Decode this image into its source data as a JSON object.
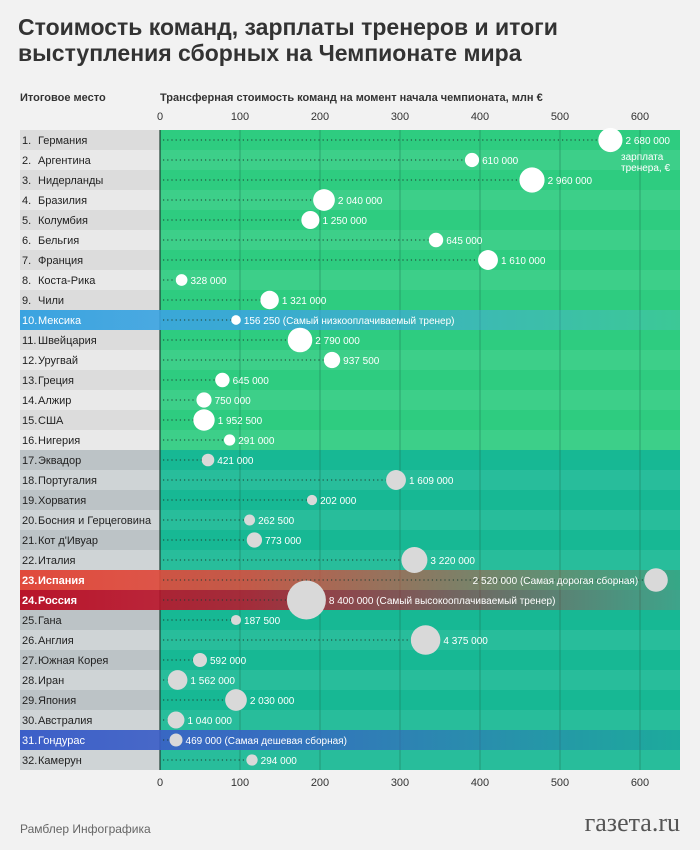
{
  "title": "Стоимость команд, зарплаты тренеров и итоги выступления сборных на Чемпионате мира",
  "rank_header": "Итоговое место",
  "footer_left": "Рамблер Инфографика",
  "footer_right": "газета.ru",
  "colors": {
    "group_top16": "#2ecc80",
    "group_rest": "#17b894",
    "bubble_top": "#ffffff",
    "bubble_rest": "#d9d9d9",
    "highlight_blue": "#3aa3e0",
    "highlight_red": "#e04a3c",
    "highlight_darkred": "#b8142a",
    "highlight_darkblue": "#3c5fc8"
  },
  "chart_data": {
    "type": "scatter",
    "title": "Трансферная стоимость команд на момент начала чемпионата, млн €",
    "xlabel": "Трансферная стоимость команд на момент начала чемпионата, млн €",
    "xlim": [
      0,
      650
    ],
    "xticks": [
      "0",
      "100",
      "200",
      "300",
      "400",
      "500",
      "600"
    ],
    "size_legend": "зарплата тренера, €",
    "rows": [
      {
        "rank": "1.",
        "team": "Германия",
        "value": 563,
        "salary": "2 680 000",
        "salary_num": 2680000
      },
      {
        "rank": "2.",
        "team": "Аргентина",
        "value": 390,
        "salary": "610 000",
        "salary_num": 610000
      },
      {
        "rank": "3.",
        "team": "Нидерланды",
        "value": 465,
        "salary": "2 960 000",
        "salary_num": 2960000
      },
      {
        "rank": "4.",
        "team": "Бразилия",
        "value": 205,
        "salary": "2 040 000",
        "salary_num": 2040000
      },
      {
        "rank": "5.",
        "team": "Колумбия",
        "value": 188,
        "salary": "1 250 000",
        "salary_num": 1250000
      },
      {
        "rank": "6.",
        "team": "Бельгия",
        "value": 345,
        "salary": "645 000",
        "salary_num": 645000
      },
      {
        "rank": "7.",
        "team": "Франция",
        "value": 410,
        "salary": "1 610 000",
        "salary_num": 1610000
      },
      {
        "rank": "8.",
        "team": "Коста-Рика",
        "value": 27,
        "salary": "328 000",
        "salary_num": 328000
      },
      {
        "rank": "9.",
        "team": "Чили",
        "value": 137,
        "salary": "1 321 000",
        "salary_num": 1321000
      },
      {
        "rank": "10.",
        "team": "Мексика",
        "value": 95,
        "salary": "156 250",
        "salary_num": 156250,
        "note": "(Самый низкооплачиваемый тренер)",
        "highlight": "highlight_blue"
      },
      {
        "rank": "11.",
        "team": "Швейцария",
        "value": 175,
        "salary": "2 790 000",
        "salary_num": 2790000
      },
      {
        "rank": "12.",
        "team": "Уругвай",
        "value": 215,
        "salary": "937 500",
        "salary_num": 937500
      },
      {
        "rank": "13.",
        "team": "Греция",
        "value": 78,
        "salary": "645 000",
        "salary_num": 645000
      },
      {
        "rank": "14.",
        "team": "Алжир",
        "value": 55,
        "salary": "750 000",
        "salary_num": 750000
      },
      {
        "rank": "15.",
        "team": "США",
        "value": 55,
        "salary": "1 952 500",
        "salary_num": 1952500
      },
      {
        "rank": "16.",
        "team": "Нигерия",
        "value": 87,
        "salary": "291 000",
        "salary_num": 291000
      },
      {
        "rank": "17.",
        "team": "Эквадор",
        "value": 60,
        "salary": "421 000",
        "salary_num": 421000
      },
      {
        "rank": "18.",
        "team": "Португалия",
        "value": 295,
        "salary": "1 609 000",
        "salary_num": 1609000
      },
      {
        "rank": "19.",
        "team": "Хорватия",
        "value": 190,
        "salary": "202 000",
        "salary_num": 202000
      },
      {
        "rank": "20.",
        "team": "Босния и Герцеговина",
        "value": 112,
        "salary": "262 500",
        "salary_num": 262500
      },
      {
        "rank": "21.",
        "team": "Кот д'Ивуар",
        "value": 118,
        "salary": "773 000",
        "salary_num": 773000
      },
      {
        "rank": "22.",
        "team": "Италия",
        "value": 318,
        "salary": "3 220 000",
        "salary_num": 3220000
      },
      {
        "rank": "23.",
        "team": "Испания",
        "value": 620,
        "salary": "2 520 000",
        "salary_num": 2520000,
        "note": "(Самая дорогая сборная)",
        "highlight": "highlight_red",
        "label_left": true
      },
      {
        "rank": "24.",
        "team": "Россия",
        "value": 183,
        "salary": "8 400 000",
        "salary_num": 8400000,
        "note": "(Самый высокооплачиваемый тренер)",
        "highlight": "highlight_darkred"
      },
      {
        "rank": "25.",
        "team": "Гана",
        "value": 95,
        "salary": "187 500",
        "salary_num": 187500
      },
      {
        "rank": "26.",
        "team": "Англия",
        "value": 332,
        "salary": "4 375 000",
        "salary_num": 4375000
      },
      {
        "rank": "27.",
        "team": "Южная Корея",
        "value": 50,
        "salary": "592 000",
        "salary_num": 592000
      },
      {
        "rank": "28.",
        "team": "Иран",
        "value": 22,
        "salary": "1 562 000",
        "salary_num": 1562000
      },
      {
        "rank": "29.",
        "team": "Япония",
        "value": 95,
        "salary": "2 030 000",
        "salary_num": 2030000
      },
      {
        "rank": "30.",
        "team": "Австралия",
        "value": 20,
        "salary": "1 040 000",
        "salary_num": 1040000
      },
      {
        "rank": "31.",
        "team": "Гондурас",
        "value": 20,
        "salary": "469 000",
        "salary_num": 469000,
        "note": "(Самая дешевая сборная)",
        "highlight": "highlight_darkblue"
      },
      {
        "rank": "32.",
        "team": "Камерун",
        "value": 115,
        "salary": "294 000",
        "salary_num": 294000
      }
    ]
  }
}
